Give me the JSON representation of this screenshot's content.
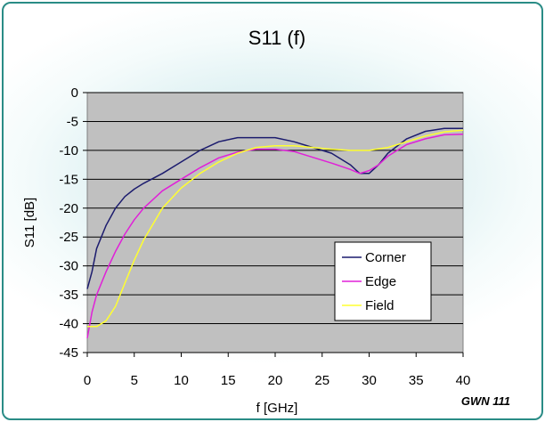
{
  "chart_data": {
    "type": "line",
    "title": "S11 (f)",
    "xlabel": "f [GHz]",
    "ylabel": "S11 [dB]",
    "xlim": [
      0,
      40
    ],
    "ylim": [
      -45,
      0
    ],
    "xticks": [
      0,
      5,
      10,
      15,
      20,
      25,
      30,
      35,
      40
    ],
    "yticks": [
      0,
      -5,
      -10,
      -15,
      -20,
      -25,
      -30,
      -35,
      -40,
      -45
    ],
    "grid": "horizontal",
    "legend_position": "bottom-right",
    "annotation": "GWN 111",
    "plot_background": "#c0c0c0",
    "series": [
      {
        "name": "Corner",
        "color": "#1c1c6e",
        "points": [
          [
            0,
            -34
          ],
          [
            0.5,
            -31
          ],
          [
            1,
            -27
          ],
          [
            2,
            -23
          ],
          [
            3,
            -20
          ],
          [
            4,
            -18
          ],
          [
            5,
            -16.7
          ],
          [
            6,
            -15.7
          ],
          [
            8,
            -14
          ],
          [
            10,
            -12
          ],
          [
            12,
            -10
          ],
          [
            14,
            -8.5
          ],
          [
            16,
            -7.8
          ],
          [
            18,
            -7.8
          ],
          [
            20,
            -7.8
          ],
          [
            22,
            -8.5
          ],
          [
            24,
            -9.5
          ],
          [
            26,
            -10.5
          ],
          [
            28,
            -12.5
          ],
          [
            29,
            -14
          ],
          [
            30,
            -14
          ],
          [
            31,
            -12.5
          ],
          [
            32,
            -10.5
          ],
          [
            34,
            -8
          ],
          [
            36,
            -6.7
          ],
          [
            38,
            -6.2
          ],
          [
            40,
            -6.2
          ]
        ]
      },
      {
        "name": "Edge",
        "color": "#e020d8",
        "points": [
          [
            0,
            -42.5
          ],
          [
            0.5,
            -38
          ],
          [
            1,
            -35
          ],
          [
            2,
            -31
          ],
          [
            3,
            -27.5
          ],
          [
            4,
            -24.5
          ],
          [
            5,
            -22
          ],
          [
            6,
            -20
          ],
          [
            8,
            -17
          ],
          [
            10,
            -15
          ],
          [
            12,
            -13
          ],
          [
            14,
            -11.3
          ],
          [
            16,
            -10.3
          ],
          [
            18,
            -9.8
          ],
          [
            20,
            -9.8
          ],
          [
            22,
            -10.2
          ],
          [
            24,
            -11.2
          ],
          [
            26,
            -12.2
          ],
          [
            28,
            -13.3
          ],
          [
            29,
            -14
          ],
          [
            30,
            -13.5
          ],
          [
            31,
            -12.5
          ],
          [
            32,
            -11
          ],
          [
            34,
            -9
          ],
          [
            36,
            -8
          ],
          [
            38,
            -7.3
          ],
          [
            40,
            -7.2
          ]
        ]
      },
      {
        "name": "Field",
        "color": "#ffff30",
        "points": [
          [
            0,
            -40.5
          ],
          [
            1,
            -40.5
          ],
          [
            2,
            -39.5
          ],
          [
            3,
            -37
          ],
          [
            4,
            -33
          ],
          [
            5,
            -29
          ],
          [
            6,
            -25.5
          ],
          [
            8,
            -20
          ],
          [
            10,
            -16.5
          ],
          [
            12,
            -14
          ],
          [
            14,
            -12
          ],
          [
            16,
            -10.5
          ],
          [
            18,
            -9.5
          ],
          [
            20,
            -9.2
          ],
          [
            22,
            -9.2
          ],
          [
            24,
            -9.5
          ],
          [
            26,
            -9.8
          ],
          [
            28,
            -10
          ],
          [
            30,
            -10
          ],
          [
            32,
            -9.5
          ],
          [
            34,
            -8.5
          ],
          [
            36,
            -7.5
          ],
          [
            38,
            -6.8
          ],
          [
            40,
            -6.5
          ]
        ]
      }
    ]
  }
}
